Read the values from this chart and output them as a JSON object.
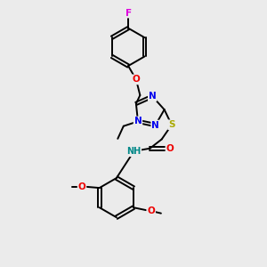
{
  "background_color": "#ebebeb",
  "atom_colors": {
    "C": "#000000",
    "N": "#0000ee",
    "O": "#ee0000",
    "S": "#aaaa00",
    "F": "#dd00dd",
    "H": "#008888"
  },
  "figsize": [
    3.0,
    3.0
  ],
  "dpi": 100,
  "lw": 1.4,
  "fontsize": 7.5
}
